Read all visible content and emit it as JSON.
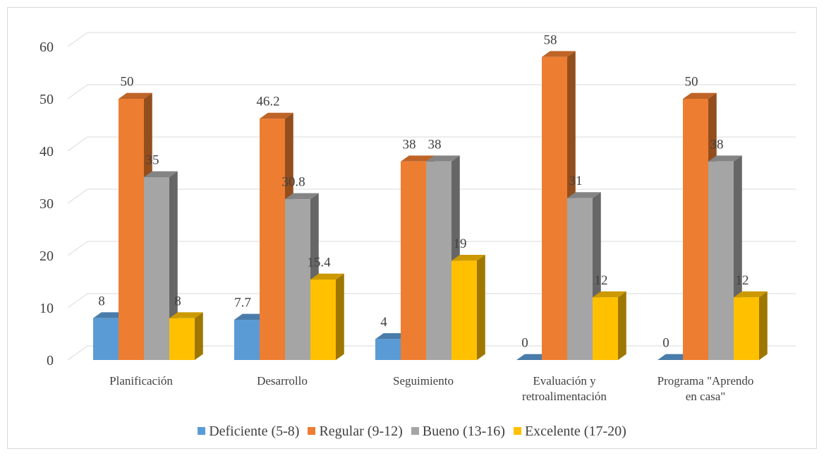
{
  "chart_data": {
    "type": "bar",
    "style": "3d-clustered-column",
    "categories": [
      "Planificación",
      "Desarrollo",
      "Seguimiento",
      "Evaluación y retroalimentación",
      "Programa \"Aprendo en casa\""
    ],
    "category_lines": [
      [
        "Planificación"
      ],
      [
        "Desarrollo"
      ],
      [
        "Seguimiento"
      ],
      [
        "Evaluación y",
        "retroalimentación"
      ],
      [
        "Programa \"Aprendo",
        "en casa\""
      ]
    ],
    "series": [
      {
        "name": "Deficiente (5-8)",
        "color": "#5B9BD5",
        "values": [
          8,
          7.7,
          4,
          0,
          0
        ],
        "labels": [
          "8",
          "7.7",
          "4",
          "0",
          "0"
        ]
      },
      {
        "name": "Regular (9-12)",
        "color": "#ED7D31",
        "values": [
          50,
          46.2,
          38,
          58,
          50
        ],
        "labels": [
          "50",
          "46.2",
          "38",
          "58",
          "50"
        ]
      },
      {
        "name": "Bueno (13-16)",
        "color": "#A5A5A5",
        "values": [
          35,
          30.8,
          38,
          31,
          38
        ],
        "labels": [
          "35",
          "30.8",
          "38",
          "31",
          "38"
        ]
      },
      {
        "name": "Excelente (17-20)",
        "color": "#FFC000",
        "values": [
          8,
          15.4,
          19,
          12,
          12
        ],
        "labels": [
          "8",
          "15.4",
          "19",
          "12",
          "12"
        ]
      }
    ],
    "y_ticks": [
      "0",
      "10",
      "20",
      "30",
      "40",
      "50",
      "60"
    ],
    "ylim": [
      0,
      60
    ],
    "grid": true,
    "legend_position": "bottom"
  }
}
